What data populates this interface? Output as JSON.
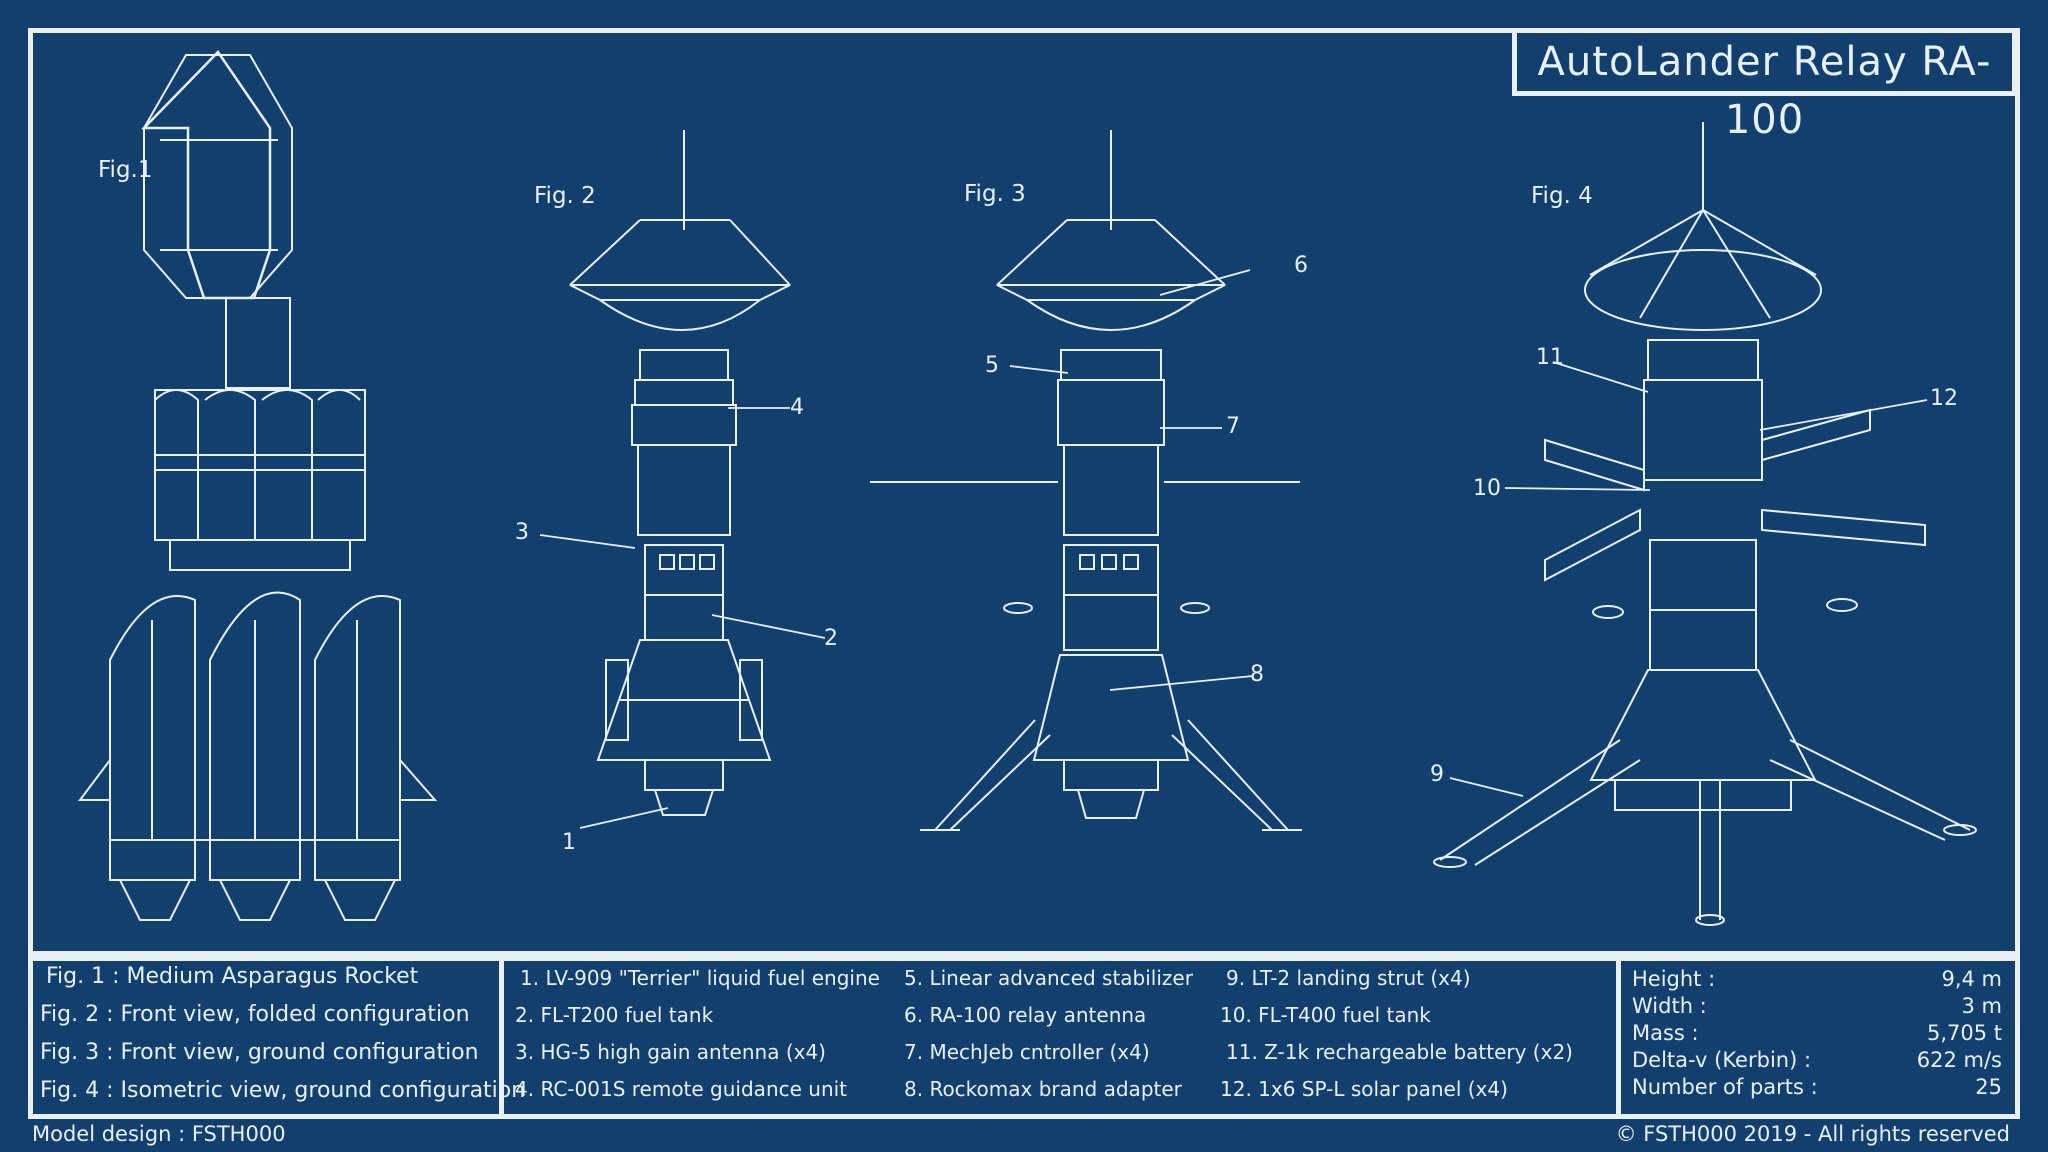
{
  "title": "AutoLander Relay RA-100",
  "figures": {
    "fig1": "Fig.1",
    "fig2": "Fig. 2",
    "fig3": "Fig. 3",
    "fig4": "Fig. 4"
  },
  "callouts": [
    "1",
    "2",
    "3",
    "4",
    "5",
    "6",
    "7",
    "8",
    "9",
    "10",
    "11",
    "12"
  ],
  "legend_figures": [
    {
      "label": "Fig. 1 :",
      "text": "Medium Asparagus Rocket"
    },
    {
      "label": "Fig. 2 :",
      "text": "Front view, folded configuration"
    },
    {
      "label": "Fig. 3 :",
      "text": "Front view, ground configuration"
    },
    {
      "label": "Fig. 4 :",
      "text": "Isometric view, ground configuration"
    }
  ],
  "parts": [
    "1. LV-909 \"Terrier\" liquid fuel engine",
    "2. FL-T200 fuel tank",
    "3. HG-5 high gain antenna (x4)",
    "4. RC-001S remote guidance unit",
    "5. Linear advanced stabilizer",
    "6. RA-100 relay antenna",
    "7. MechJeb cntroller (x4)",
    "8. Rockomax brand adapter",
    "9. LT-2 landing strut (x4)",
    "10. FL-T400 fuel tank",
    "11. Z-1k rechargeable battery (x2)",
    "12. 1x6 SP-L solar panel (x4)"
  ],
  "stats": [
    {
      "label": "Height :",
      "value": "9,4 m"
    },
    {
      "label": "Width :",
      "value": "3 m"
    },
    {
      "label": "Mass :",
      "value": "5,705 t"
    },
    {
      "label": "Delta-v (Kerbin) :",
      "value": "622 m/s"
    },
    {
      "label": "Number of parts :",
      "value": "25"
    }
  ],
  "footer": {
    "left": "Model design : FSTH000",
    "right": "© FSTH000 2019 - All rights reserved"
  },
  "colors": {
    "background": "#123f6e",
    "line": "#e8f0fa"
  }
}
